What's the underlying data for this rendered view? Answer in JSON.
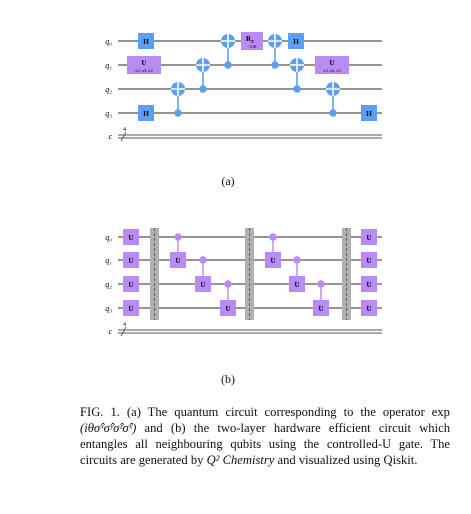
{
  "circuit_a": {
    "wire_labels": [
      "q₀",
      "q₁",
      "q₂",
      "q₃",
      "c"
    ],
    "classical_width": "4",
    "gates": {
      "h": "H",
      "u": "U",
      "u_params": "π/2, π/2, π/2",
      "rz": "R",
      "rz_sub": "Z",
      "rz_param": "−2.0θ"
    },
    "label": "(a)"
  },
  "circuit_b": {
    "wire_labels": [
      "q₀",
      "q₁",
      "q₂",
      "q₃",
      "c"
    ],
    "classical_width": "4",
    "gates": {
      "u": "U"
    },
    "label": "(b)"
  },
  "caption": {
    "prefix": "FIG. 1.",
    "text_a": " (a) The quantum circuit corresponding to the operator exp ",
    "operator": "(iθσ̂ˣσ̂ʸσ̂ᶻσ̂ˣ)",
    "text_b": " and (b) the two-layer hardware efficient circuit which entangles all neighbouring qubits using the controlled-U gate. The circuits are generated by ",
    "software": "Q² Chemistry",
    "text_c": " and visualized using Qiskit."
  },
  "colors": {
    "h_gate": "#5aa0f2",
    "u_gate": "#b98cf5",
    "cnot": "#5aa0f2",
    "barrier": "#b0b0b0",
    "wire": "#555555"
  }
}
